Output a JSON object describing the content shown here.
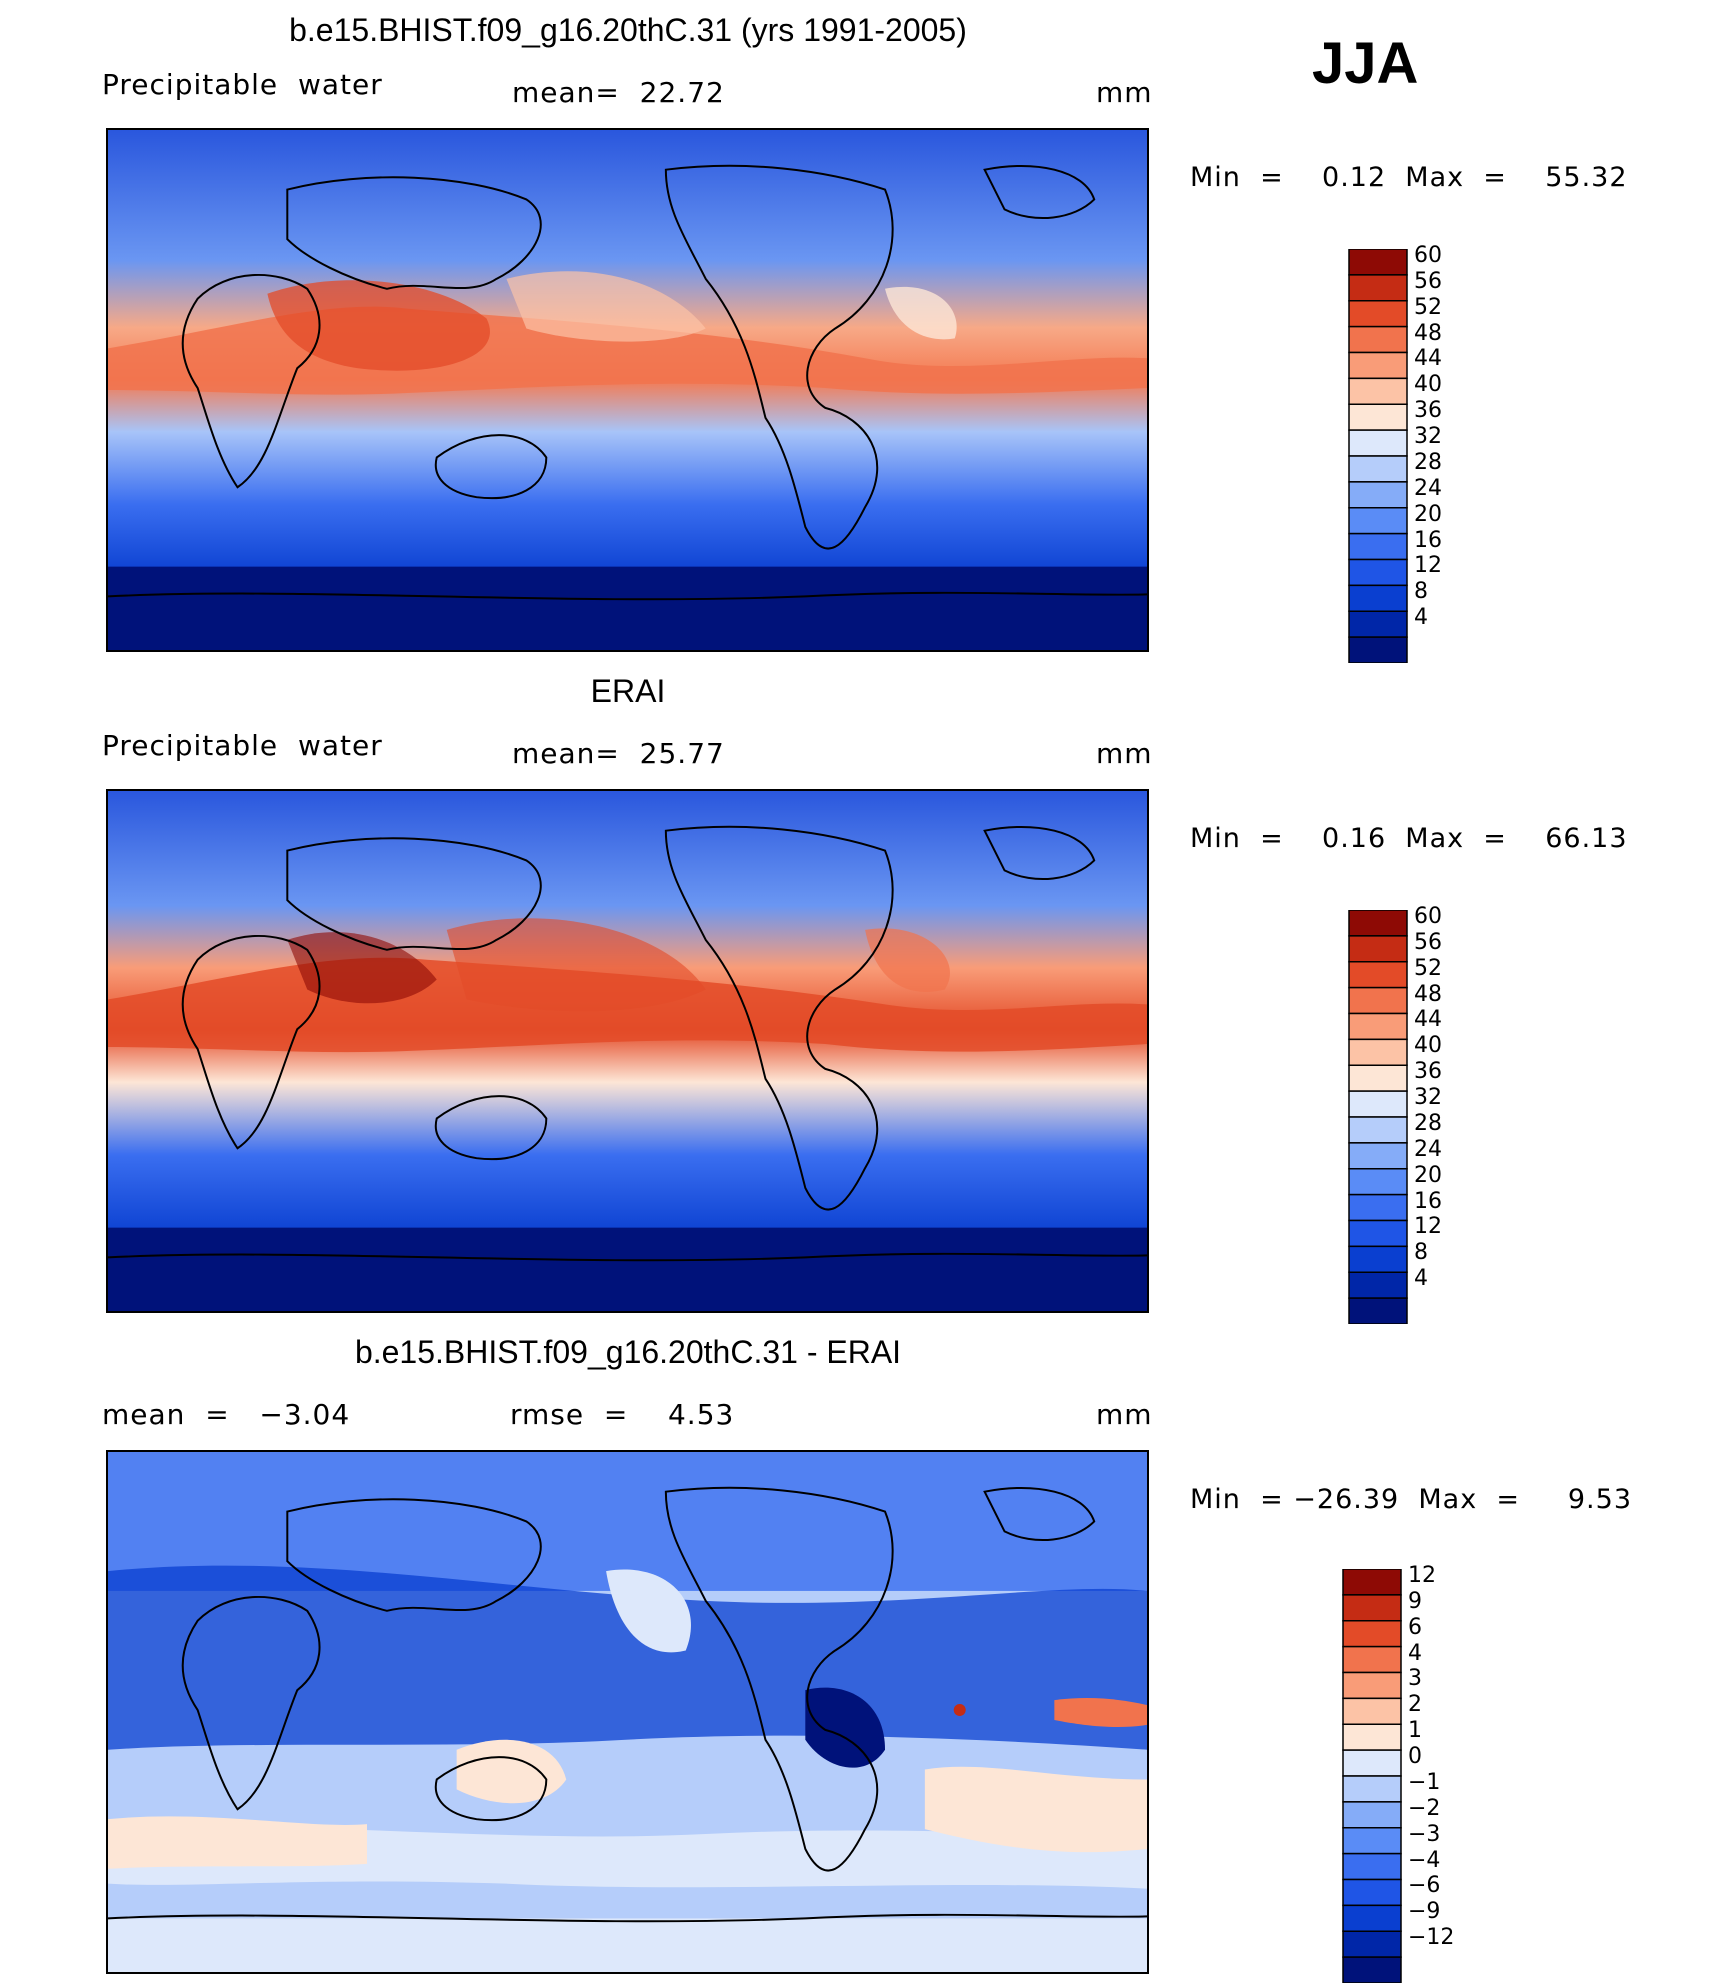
{
  "season": "JJA",
  "panels": [
    {
      "id": "model",
      "title": "b.e15.BHIST.f09_g16.20thC.31 (yrs 1991-2005)",
      "left_label": "Precipitable  water",
      "stat_label": "mean=  22.72",
      "units": "mm",
      "minmax": "Min  =    0.12  Max  =    55.32",
      "colorbar": {
        "labels": [
          "60",
          "56",
          "52",
          "48",
          "44",
          "40",
          "36",
          "32",
          "28",
          "24",
          "20",
          "16",
          "12",
          "8",
          "4"
        ]
      }
    },
    {
      "id": "obs",
      "title": "ERAI",
      "left_label": "Precipitable  water",
      "stat_label": "mean=  25.77",
      "units": "mm",
      "minmax": "Min  =    0.16  Max  =    66.13",
      "colorbar": {
        "labels": [
          "60",
          "56",
          "52",
          "48",
          "44",
          "40",
          "36",
          "32",
          "28",
          "24",
          "20",
          "16",
          "12",
          "8",
          "4"
        ]
      }
    },
    {
      "id": "diff",
      "title": "b.e15.BHIST.f09_g16.20thC.31 - ERAI",
      "left_label": "mean  =   −3.04",
      "stat_label": "rmse  =    4.53",
      "units": "mm",
      "minmax": "Min  = −26.39  Max  =     9.53",
      "colorbar": {
        "labels": [
          "12",
          "9",
          "6",
          "4",
          "3",
          "2",
          "1",
          "0",
          "−1",
          "−2",
          "−3",
          "−4",
          "−6",
          "−9",
          "−12"
        ]
      }
    }
  ],
  "colors": {
    "abs_scale": [
      "#00127a",
      "#0026a8",
      "#0a3fd0",
      "#1f55e6",
      "#3a6ef0",
      "#5a8cf6",
      "#85acf8",
      "#b5cdfa",
      "#dde8fb",
      "#fde6d6",
      "#fcc3a6",
      "#f99c78",
      "#f1734d",
      "#e34b28",
      "#c52c14",
      "#8e0a05"
    ],
    "diff_scale": [
      "#00127a",
      "#0026a8",
      "#0a3fd0",
      "#1f55e6",
      "#3a6ef0",
      "#5a8cf6",
      "#85acf8",
      "#b5cdfa",
      "#dde8fb",
      "#fde6d6",
      "#fcc3a6",
      "#f99c78",
      "#f1734d",
      "#e34b28",
      "#c52c14",
      "#8e0a05"
    ]
  }
}
